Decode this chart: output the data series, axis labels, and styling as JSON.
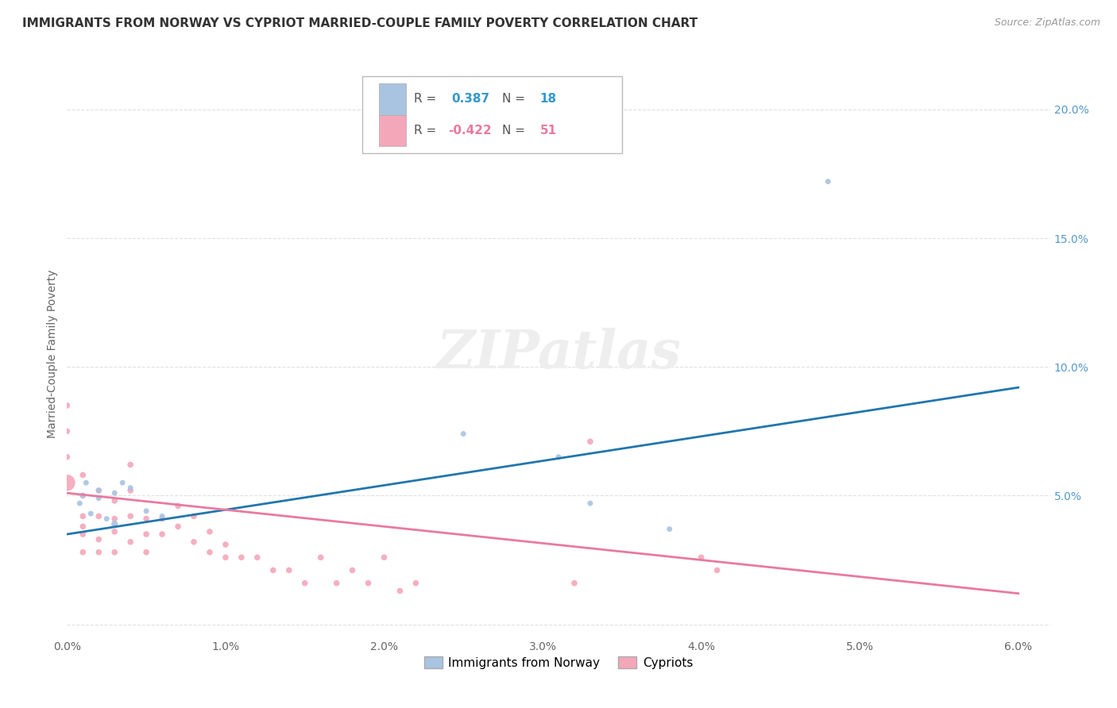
{
  "title": "IMMIGRANTS FROM NORWAY VS CYPRIOT MARRIED-COUPLE FAMILY POVERTY CORRELATION CHART",
  "source": "Source: ZipAtlas.com",
  "ylabel": "Married-Couple Family Poverty",
  "xlim": [
    0.0,
    0.062
  ],
  "ylim": [
    -0.005,
    0.215
  ],
  "xticks": [
    0.0,
    0.01,
    0.02,
    0.03,
    0.04,
    0.05,
    0.06
  ],
  "xtick_labels": [
    "0.0%",
    "1.0%",
    "2.0%",
    "3.0%",
    "4.0%",
    "5.0%",
    "6.0%"
  ],
  "yticks": [
    0.0,
    0.05,
    0.1,
    0.15,
    0.2
  ],
  "ytick_labels": [
    "",
    "5.0%",
    "10.0%",
    "15.0%",
    "20.0%"
  ],
  "norway_R": 0.387,
  "norway_N": 18,
  "cypriot_R": -0.422,
  "cypriot_N": 51,
  "norway_color": "#a8c4e0",
  "cypriot_color": "#f4a7b9",
  "norway_line_color": "#2176ae",
  "cypriot_line_color": "#e87a9f",
  "legend_label_norway": "Immigrants from Norway",
  "legend_label_cypriot": "Cypriots",
  "norway_scatter_x": [
    0.0008,
    0.001,
    0.0012,
    0.0015,
    0.002,
    0.002,
    0.0025,
    0.003,
    0.003,
    0.0035,
    0.004,
    0.005,
    0.006,
    0.025,
    0.031,
    0.033,
    0.038,
    0.048
  ],
  "norway_scatter_y": [
    0.047,
    0.05,
    0.055,
    0.043,
    0.049,
    0.052,
    0.041,
    0.039,
    0.051,
    0.055,
    0.053,
    0.044,
    0.042,
    0.074,
    0.065,
    0.047,
    0.037,
    0.172
  ],
  "norway_scatter_size": [
    25,
    25,
    25,
    25,
    25,
    25,
    25,
    35,
    25,
    25,
    25,
    25,
    25,
    25,
    25,
    25,
    25,
    25
  ],
  "cypriot_scatter_x": [
    0.0,
    0.0,
    0.0,
    0.0,
    0.001,
    0.001,
    0.001,
    0.001,
    0.001,
    0.001,
    0.002,
    0.002,
    0.002,
    0.002,
    0.003,
    0.003,
    0.003,
    0.003,
    0.004,
    0.004,
    0.004,
    0.004,
    0.005,
    0.005,
    0.005,
    0.006,
    0.006,
    0.007,
    0.007,
    0.008,
    0.008,
    0.009,
    0.009,
    0.01,
    0.01,
    0.011,
    0.012,
    0.013,
    0.014,
    0.015,
    0.016,
    0.017,
    0.018,
    0.019,
    0.02,
    0.021,
    0.022,
    0.032,
    0.033,
    0.04,
    0.041
  ],
  "cypriot_scatter_y": [
    0.055,
    0.065,
    0.075,
    0.085,
    0.042,
    0.05,
    0.058,
    0.035,
    0.028,
    0.038,
    0.042,
    0.052,
    0.033,
    0.028,
    0.041,
    0.048,
    0.036,
    0.028,
    0.062,
    0.052,
    0.042,
    0.032,
    0.041,
    0.035,
    0.028,
    0.041,
    0.035,
    0.046,
    0.038,
    0.042,
    0.032,
    0.036,
    0.028,
    0.031,
    0.026,
    0.026,
    0.026,
    0.021,
    0.021,
    0.016,
    0.026,
    0.016,
    0.021,
    0.016,
    0.026,
    0.013,
    0.016,
    0.016,
    0.071,
    0.026,
    0.021
  ],
  "cypriot_scatter_size": [
    220,
    30,
    30,
    30,
    30,
    30,
    30,
    30,
    30,
    30,
    30,
    30,
    30,
    30,
    30,
    30,
    30,
    30,
    30,
    30,
    30,
    30,
    30,
    30,
    30,
    30,
    30,
    30,
    30,
    30,
    30,
    30,
    30,
    30,
    30,
    30,
    30,
    30,
    30,
    30,
    30,
    30,
    30,
    30,
    30,
    30,
    30,
    30,
    30,
    30,
    30
  ],
  "norway_trendline_x": [
    0.0,
    0.06
  ],
  "norway_trendline_y": [
    0.035,
    0.092
  ],
  "cypriot_trendline_x": [
    0.0,
    0.06
  ],
  "cypriot_trendline_y": [
    0.051,
    0.012
  ],
  "background_color": "#ffffff",
  "grid_color": "#e0e0e0"
}
